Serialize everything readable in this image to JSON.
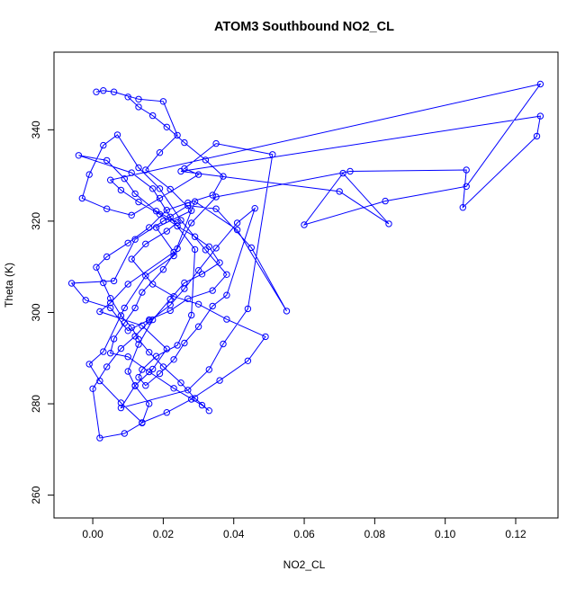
{
  "chart_data": {
    "type": "scatter",
    "title": "ATOM3 Southbound NO2_CL",
    "xlabel": "NO2_CL",
    "ylabel": "Theta (K)",
    "xlim": [
      -0.011,
      0.132
    ],
    "ylim": [
      255,
      357
    ],
    "xticks": [
      0.0,
      0.02,
      0.04,
      0.06,
      0.08,
      0.1,
      0.12
    ],
    "xtick_labels": [
      "0.00",
      "0.02",
      "0.04",
      "0.06",
      "0.08",
      "0.10",
      "0.12"
    ],
    "yticks": [
      260,
      280,
      300,
      320,
      340
    ],
    "yticks_labels": [
      "260",
      "280",
      "300",
      "320",
      "340"
    ],
    "style": "points connected by lines",
    "grid": false,
    "legend": "none",
    "color": "#0000ff",
    "series": [
      {
        "x": [
          0.001,
          0.003,
          0.006,
          0.013,
          0.02,
          0.024,
          0.019,
          0.015,
          0.022,
          0.028,
          0.018,
          0.023,
          0.01,
          0.005,
          0.002,
          0.014,
          0.021,
          0.017,
          0.012,
          0.008,
          0.027,
          0.033,
          0.037,
          0.044,
          0.051,
          0.035,
          0.026,
          0.03,
          0.019,
          0.011,
          0.004,
          -0.003,
          -0.001,
          0.003,
          0.007,
          0.013,
          0.019,
          0.025,
          0.032,
          0.038,
          0.034,
          0.027,
          0.022,
          0.016,
          0.01,
          0.005,
          -0.002,
          -0.006,
          0.006,
          0.012,
          0.02,
          0.027,
          0.035,
          0.045,
          0.055,
          0.041,
          0.029,
          0.023,
          0.015,
          0.009,
          0.003,
          -0.001,
          0.002,
          0.008,
          0.014,
          0.021,
          0.028,
          0.036,
          0.044,
          0.049,
          0.038,
          0.03,
          0.023,
          0.017,
          0.011,
          0.015,
          0.021,
          0.024,
          0.018,
          0.012,
          0.009,
          0.004,
          -0.004,
          0.011,
          0.017,
          0.022,
          0.029,
          0.028,
          0.024,
          0.018,
          0.014,
          0.013,
          0.015,
          0.019,
          0.023,
          0.026,
          0.03,
          0.034,
          0.038,
          0.046,
          0.041,
          0.035,
          0.03,
          0.026,
          0.022,
          0.016,
          0.012,
          0.008,
          0.004,
          0.0,
          0.002,
          0.009,
          0.014,
          0.016,
          0.012,
          0.01,
          0.013,
          0.017,
          0.022,
          0.026,
          0.031,
          0.036,
          0.033,
          0.029,
          0.024,
          0.019,
          0.013,
          0.008,
          0.005,
          0.127,
          0.106,
          0.083,
          0.06,
          0.071,
          0.084,
          0.07,
          0.025,
          0.127,
          0.126,
          0.105,
          0.106,
          0.073,
          0.035,
          0.028,
          0.024,
          0.02,
          0.014,
          0.012,
          0.009,
          0.006,
          0.005,
          0.01,
          0.016,
          0.023,
          0.031,
          0.033,
          0.029,
          0.025,
          0.02,
          0.016,
          0.013,
          0.011,
          0.008,
          0.005,
          0.003,
          0.001,
          0.004,
          0.01,
          0.016,
          0.021,
          0.027,
          0.034,
          0.037,
          0.032,
          0.026,
          0.021,
          0.017,
          0.013,
          0.01
        ],
        "y": [
          348.3,
          348.6,
          348.3,
          346.7,
          346.2,
          338.8,
          335.0,
          331.2,
          327.0,
          322.3,
          318.6,
          313.2,
          306.2,
          302.1,
          300.2,
          297.1,
          292.0,
          287.6,
          284.0,
          279.1,
          283.0,
          287.5,
          293.1,
          300.8,
          334.6,
          337.0,
          331.5,
          330.2,
          325.0,
          321.3,
          322.7,
          325.0,
          330.2,
          336.6,
          338.9,
          331.7,
          327.1,
          320.2,
          313.7,
          308.3,
          304.8,
          303.0,
          300.4,
          298.4,
          296.0,
          301.0,
          302.7,
          306.4,
          306.9,
          316.0,
          320.0,
          323.4,
          322.7,
          314.2,
          300.3,
          318.1,
          324.3,
          312.4,
          308.0,
          301.0,
          291.4,
          288.7,
          285.0,
          280.2,
          275.9,
          278.1,
          281.0,
          285.1,
          289.4,
          294.7,
          298.5,
          301.8,
          303.5,
          306.2,
          311.7,
          315.0,
          317.8,
          319.7,
          322.2,
          326.0,
          329.3,
          333.3,
          334.4,
          330.6,
          327.1,
          320.9,
          313.8,
          299.4,
          292.8,
          290.4,
          287.5,
          285.8,
          284.0,
          286.6,
          289.7,
          293.3,
          296.9,
          301.4,
          303.8,
          322.8,
          319.6,
          314.1,
          309.2,
          305.2,
          301.6,
          298.1,
          294.8,
          292.1,
          288.1,
          283.3,
          272.5,
          273.5,
          275.8,
          280.0,
          283.9,
          287.1,
          293.0,
          298.4,
          302.9,
          306.5,
          308.4,
          310.9,
          314.4,
          316.6,
          318.9,
          321.5,
          324.2,
          326.8,
          329.0,
          350.0,
          327.6,
          324.4,
          319.2,
          330.5,
          319.4,
          326.5,
          330.9,
          343.0,
          338.6,
          323.0,
          331.2,
          330.9,
          325.3,
          319.6,
          314.0,
          309.4,
          304.4,
          301.0,
          297.7,
          294.2,
          291.1,
          290.3,
          287.0,
          283.4,
          279.7,
          278.5,
          281.2,
          284.6,
          288.1,
          291.3,
          294.1,
          296.7,
          299.3,
          303.1,
          306.5,
          309.9,
          312.2,
          315.2,
          318.6,
          322.4,
          324.0,
          325.7,
          329.8,
          333.4,
          337.2,
          340.6,
          343.1,
          345.0,
          347.2
        ]
      }
    ]
  }
}
